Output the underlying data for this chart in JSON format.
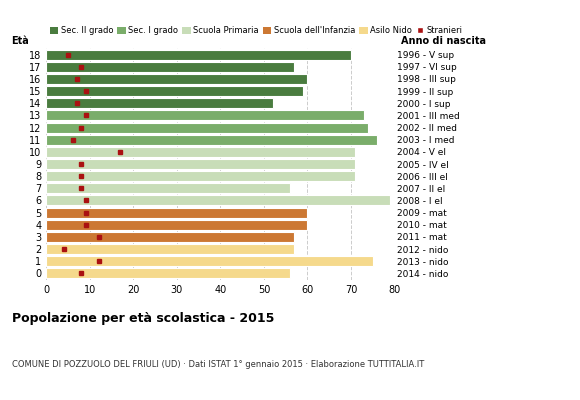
{
  "ages": [
    18,
    17,
    16,
    15,
    14,
    13,
    12,
    11,
    10,
    9,
    8,
    7,
    6,
    5,
    4,
    3,
    2,
    1,
    0
  ],
  "bar_values": [
    70,
    57,
    60,
    59,
    52,
    73,
    74,
    76,
    71,
    71,
    71,
    56,
    79,
    60,
    60,
    57,
    57,
    75,
    56
  ],
  "stranieri": [
    5,
    8,
    7,
    9,
    7,
    9,
    8,
    6,
    17,
    8,
    8,
    8,
    9,
    9,
    9,
    12,
    4,
    12,
    8
  ],
  "anno_nascita": [
    "1996 - V sup",
    "1997 - VI sup",
    "1998 - III sup",
    "1999 - II sup",
    "2000 - I sup",
    "2001 - III med",
    "2002 - II med",
    "2003 - I med",
    "2004 - V el",
    "2005 - IV el",
    "2006 - III el",
    "2007 - II el",
    "2008 - I el",
    "2009 - mat",
    "2010 - mat",
    "2011 - mat",
    "2012 - nido",
    "2013 - nido",
    "2014 - nido"
  ],
  "school_types": {
    "sec2": {
      "ages": [
        18,
        17,
        16,
        15,
        14
      ],
      "color": "#4a7c3f"
    },
    "sec1": {
      "ages": [
        13,
        12,
        11
      ],
      "color": "#7aad6a"
    },
    "primaria": {
      "ages": [
        10,
        9,
        8,
        7,
        6
      ],
      "color": "#c8ddb8"
    },
    "infanzia": {
      "ages": [
        5,
        4,
        3
      ],
      "color": "#cc7833"
    },
    "nido": {
      "ages": [
        2,
        1,
        0
      ],
      "color": "#f5d98c"
    }
  },
  "legend_labels": [
    "Sec. II grado",
    "Sec. I grado",
    "Scuola Primaria",
    "Scuola dell'Infanzia",
    "Asilo Nido",
    "Stranieri"
  ],
  "legend_colors": [
    "#4a7c3f",
    "#7aad6a",
    "#c8ddb8",
    "#cc7833",
    "#f5d98c",
    "#aa1111"
  ],
  "title": "Popolazione per età scolastica - 2015",
  "subtitle": "COMUNE DI POZZUOLO DEL FRIULI (UD) · Dati ISTAT 1° gennaio 2015 · Elaborazione TUTTITALIA.IT",
  "xlabel_eta": "Età",
  "xlabel_anno": "Anno di nascita",
  "xlim": [
    0,
    80
  ],
  "background_color": "#ffffff",
  "grid_color": "#cccccc"
}
